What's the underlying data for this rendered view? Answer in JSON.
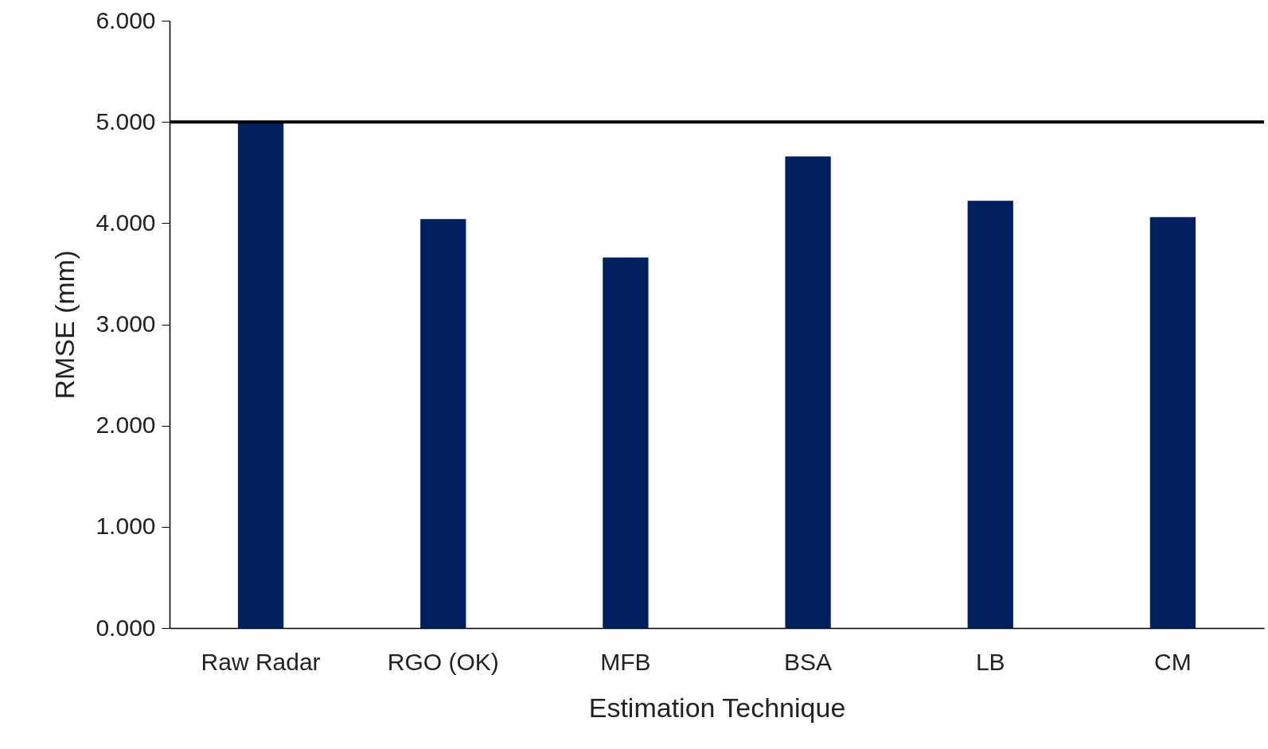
{
  "chart_data": {
    "type": "bar",
    "xlabel": "Estimation Technique",
    "ylabel": "RMSE (mm)",
    "categories": [
      "Raw Radar",
      "RGO (OK)",
      "MFB",
      "BSA",
      "LB",
      "CM"
    ],
    "values": [
      5.0,
      4.04,
      3.66,
      4.66,
      4.22,
      4.06
    ],
    "color": "#00215e",
    "ylim": [
      0,
      6
    ],
    "yticks": [
      {
        "value": 0,
        "label": "0.000"
      },
      {
        "value": 1,
        "label": "1.000"
      },
      {
        "value": 2,
        "label": "2.000"
      },
      {
        "value": 3,
        "label": "3.000"
      },
      {
        "value": 4,
        "label": "4.000"
      },
      {
        "value": 5,
        "label": "5.000"
      },
      {
        "value": 6,
        "label": "6.000"
      }
    ],
    "ref_lines": [
      {
        "axis": "y",
        "value": 5,
        "color": "#000000"
      }
    ]
  }
}
